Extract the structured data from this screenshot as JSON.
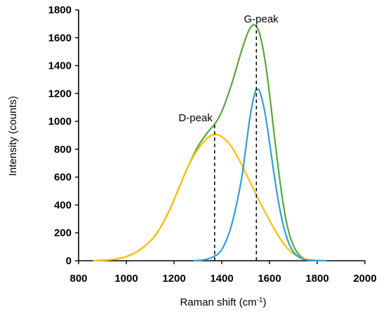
{
  "chart_data": {
    "type": "line",
    "title": "",
    "xlabel": "Raman shift (cm",
    "xlabel_sup": "-1",
    "xlabel_close": ")",
    "ylabel": "Intensity (counts)",
    "xlim": [
      800,
      2000
    ],
    "ylim": [
      0,
      1800
    ],
    "xticks": [
      800,
      1000,
      1200,
      1400,
      1600,
      1800,
      2000
    ],
    "yticks": [
      0,
      200,
      400,
      600,
      800,
      1000,
      1200,
      1400,
      1600,
      1800
    ],
    "grid": false,
    "legend": "none",
    "series": [
      {
        "color": "#56a83a",
        "x": [
          860,
          920,
          980,
          1040,
          1100,
          1140,
          1180,
          1220,
          1260,
          1300,
          1340,
          1370,
          1400,
          1440,
          1480,
          1510,
          1530,
          1545,
          1560,
          1580,
          1600,
          1620,
          1640,
          1660,
          1680,
          1700,
          1720,
          1740,
          1760,
          1800,
          1840
        ],
        "y": [
          0,
          5,
          20,
          60,
          140,
          230,
          360,
          520,
          680,
          820,
          920,
          980,
          1070,
          1260,
          1490,
          1640,
          1690,
          1680,
          1620,
          1450,
          1200,
          900,
          620,
          380,
          210,
          110,
          50,
          20,
          8,
          2,
          0
        ]
      },
      {
        "color": "#ffc000",
        "x": [
          860,
          920,
          980,
          1040,
          1100,
          1140,
          1180,
          1220,
          1260,
          1300,
          1340,
          1370,
          1400,
          1440,
          1480,
          1520,
          1560,
          1600,
          1640,
          1680,
          1720,
          1760,
          1800
        ],
        "y": [
          0,
          5,
          20,
          60,
          140,
          230,
          360,
          520,
          680,
          800,
          880,
          905,
          890,
          820,
          700,
          560,
          420,
          290,
          170,
          80,
          30,
          8,
          0
        ]
      },
      {
        "color": "#2f9fd8",
        "x": [
          1280,
          1320,
          1360,
          1400,
          1440,
          1480,
          1500,
          1520,
          1540,
          1550,
          1560,
          1580,
          1600,
          1620,
          1640,
          1660,
          1680,
          1700,
          1720,
          1740,
          1760,
          1800,
          1840
        ],
        "y": [
          0,
          5,
          25,
          80,
          250,
          560,
          800,
          1050,
          1210,
          1230,
          1210,
          1070,
          850,
          610,
          400,
          240,
          130,
          65,
          30,
          12,
          5,
          1,
          0
        ]
      }
    ],
    "vlines": [
      {
        "x": 1370,
        "y": 980
      },
      {
        "x": 1545,
        "y": 1690
      }
    ],
    "annotations": [
      {
        "text": "D-peak",
        "x": 1290,
        "y": 1000
      },
      {
        "text": "G-peak",
        "x": 1565,
        "y": 1710
      }
    ]
  }
}
